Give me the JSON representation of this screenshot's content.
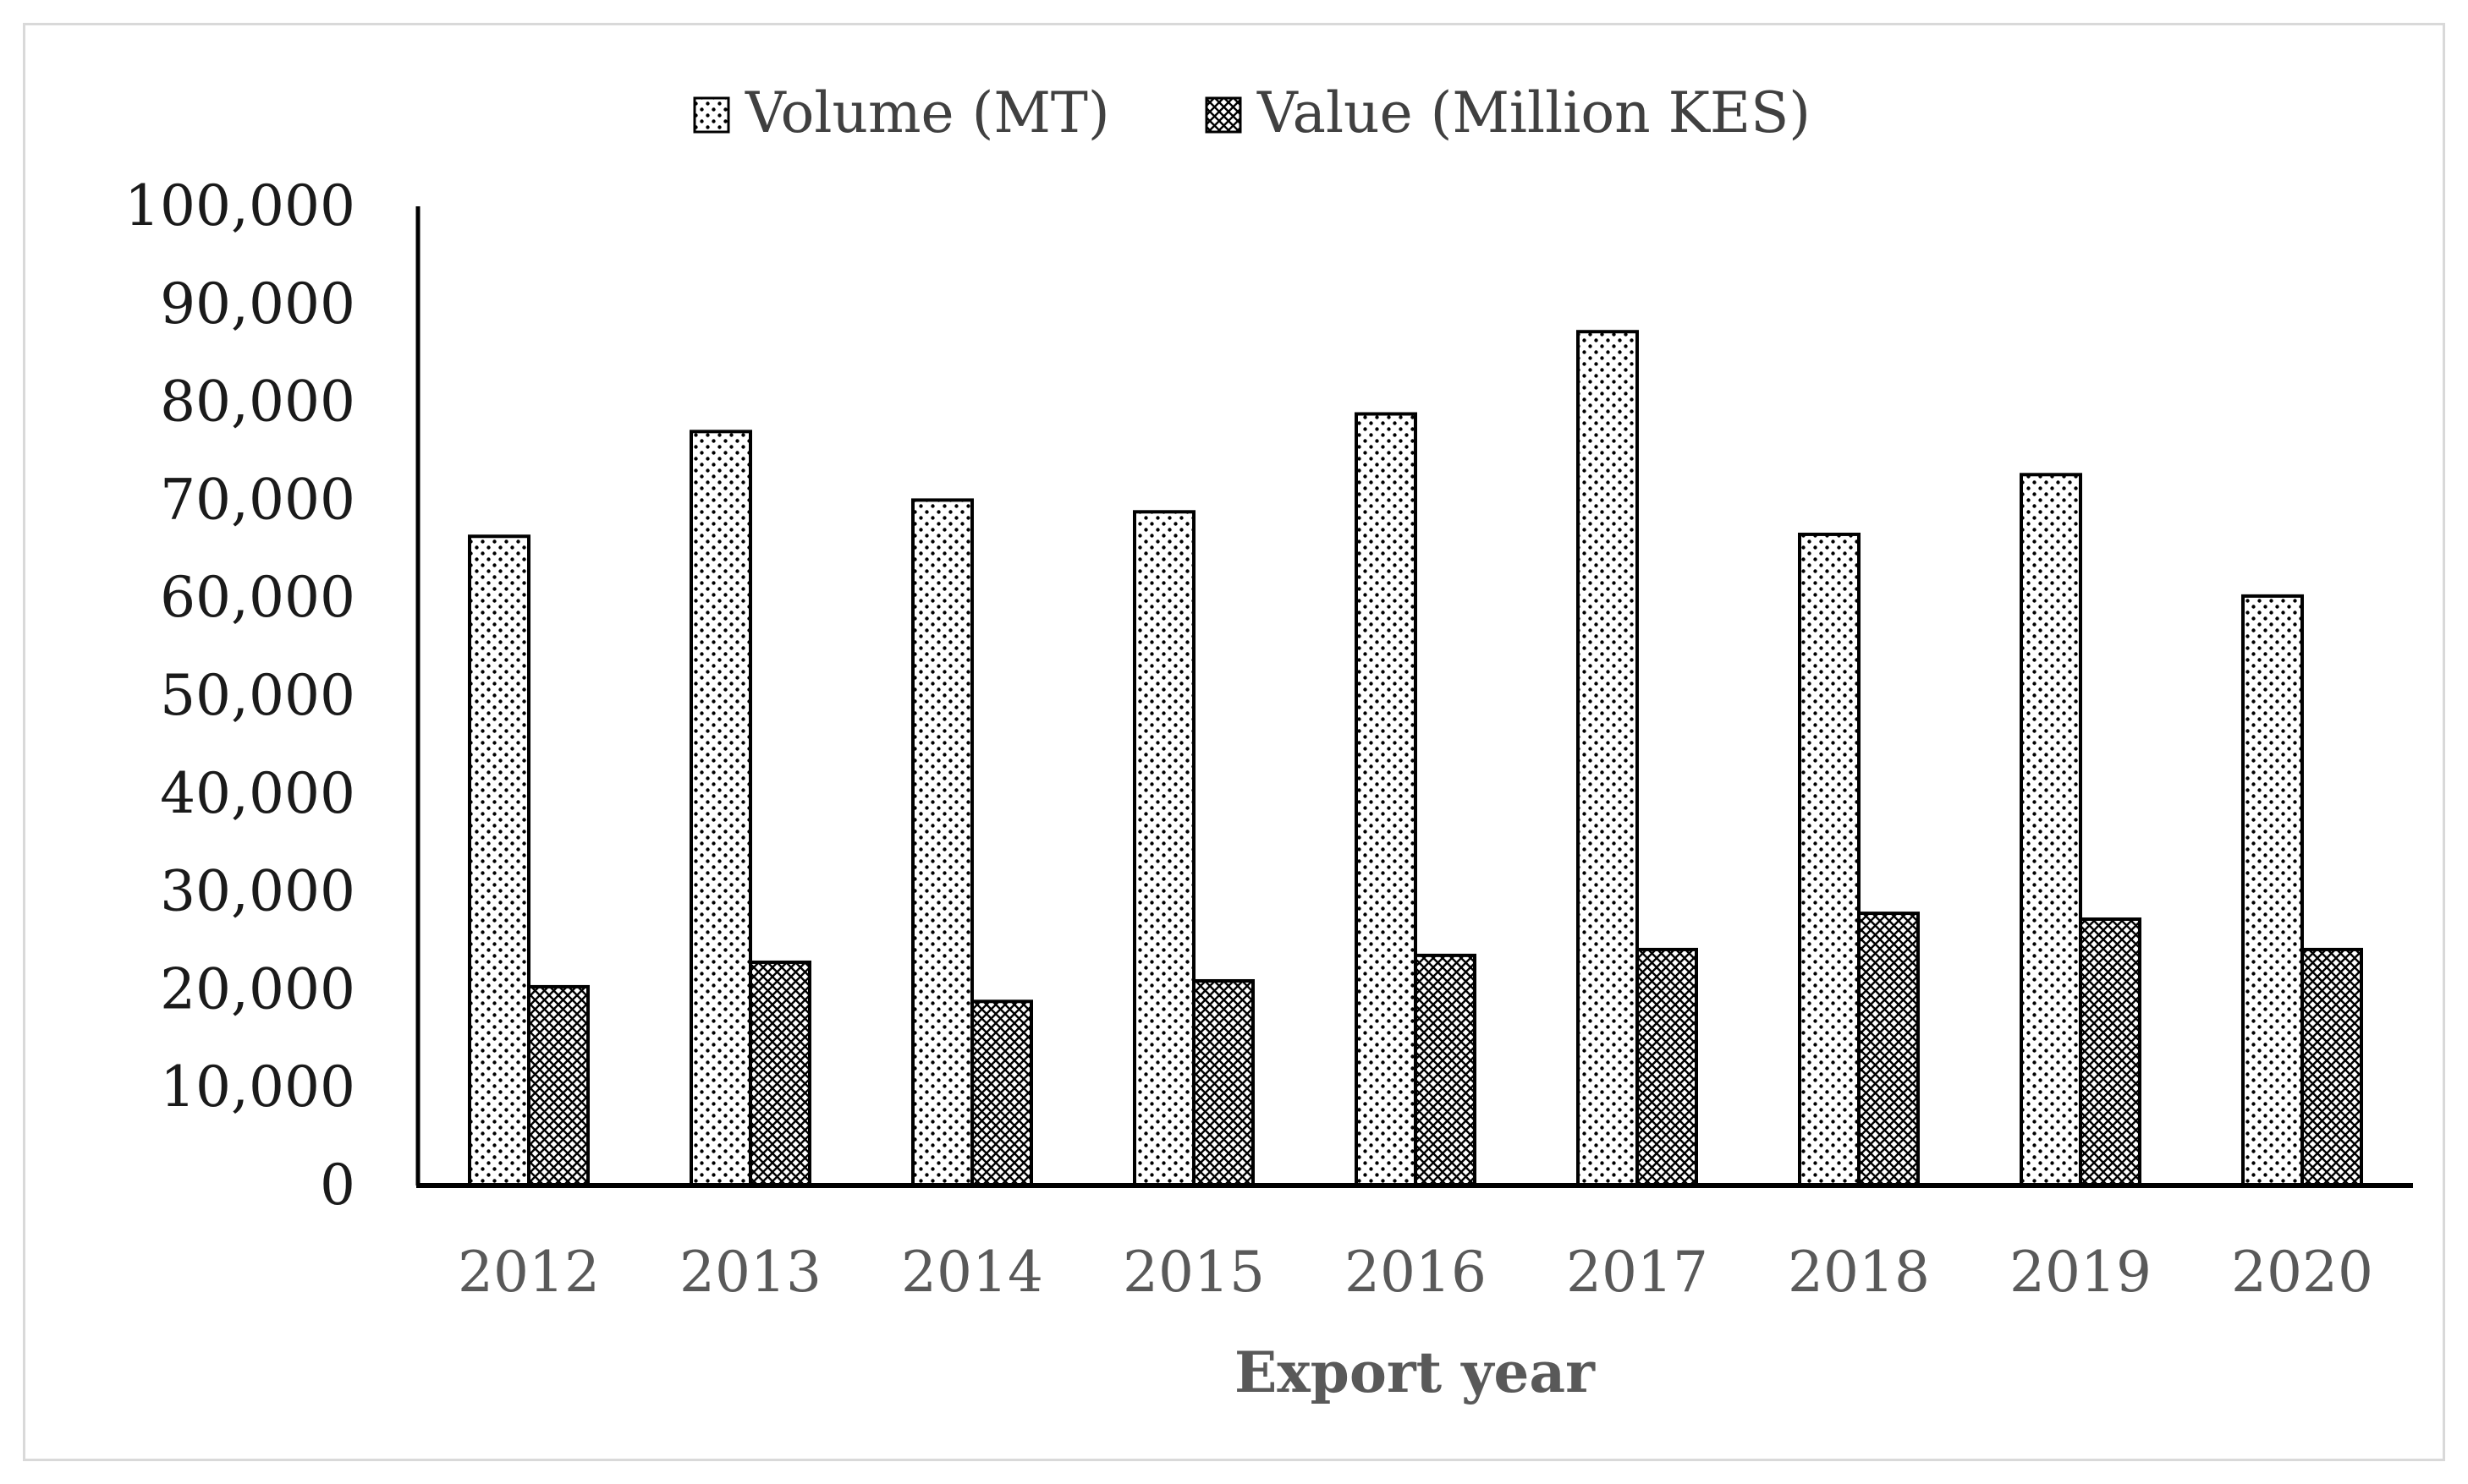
{
  "chart_data": {
    "type": "bar",
    "title": "",
    "xlabel": "Export year",
    "ylabel": "",
    "categories": [
      "2012",
      "2013",
      "2014",
      "2015",
      "2016",
      "2017",
      "2018",
      "2019",
      "2020"
    ],
    "series": [
      {
        "name": "Volume (MT)",
        "pattern": "dots",
        "values": [
          66300,
          77000,
          70000,
          68800,
          78800,
          87200,
          66500,
          72600,
          60200
        ]
      },
      {
        "name": "Value (Million KES)",
        "pattern": "crosshatch",
        "values": [
          20300,
          22800,
          18800,
          20900,
          23500,
          24100,
          27800,
          27200,
          24100
        ]
      }
    ],
    "ylim": [
      0,
      100000
    ],
    "yticks": [
      0,
      10000,
      20000,
      30000,
      40000,
      50000,
      60000,
      70000,
      80000,
      90000,
      100000
    ],
    "ytick_labels": [
      "0",
      "10,000",
      "20,000",
      "30,000",
      "40,000",
      "50,000",
      "60,000",
      "70,000",
      "80,000",
      "90,000",
      "100,000"
    ],
    "legend_position": "top",
    "grid": false,
    "colors": {
      "bar_fill": "#ffffff",
      "bar_stroke": "#000000",
      "axis": "#000000",
      "frame": "#d9d9d9"
    }
  }
}
